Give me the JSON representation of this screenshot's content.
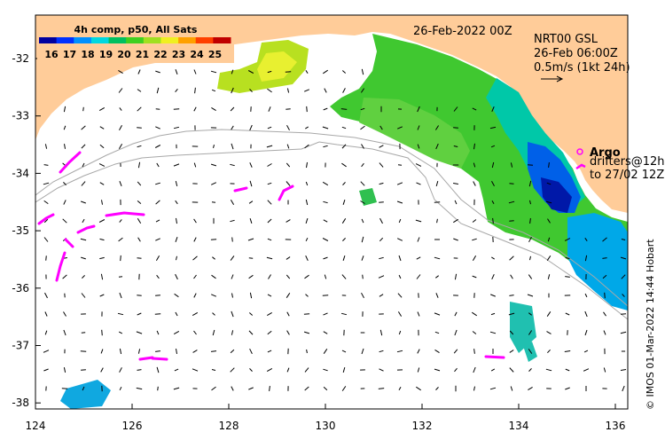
{
  "map": {
    "legend_title": "4h comp, p50, All Sats",
    "legend_ticks": [
      "16",
      "17",
      "18",
      "19",
      "20",
      "21",
      "22",
      "23",
      "24",
      "25"
    ],
    "legend_colors": [
      "#00009f",
      "#0030ff",
      "#0090ff",
      "#00d8e0",
      "#00c060",
      "#40d020",
      "#a0e020",
      "#f0f020",
      "#ffa000",
      "#ff4000",
      "#c00000"
    ],
    "date_label": "26-Feb-2022 00Z",
    "product_label": "NRT00 GSL",
    "product_time": "26-Feb 06:00Z",
    "scale_label": "0.5m/s (1kt 24h)",
    "argo_label": "Argo",
    "drifters_label": "drifters@12h",
    "drifters_range": "to 27/02 12Z",
    "credit": "© IMOS 01-Mar-2022 14:44 Hobart",
    "x_ticks": [
      "124",
      "126",
      "128",
      "130",
      "132",
      "134",
      "136"
    ],
    "y_ticks": [
      "-32",
      "-33",
      "-34",
      "-35",
      "-36",
      "-37",
      "-38"
    ],
    "land_color": "#ffcc99",
    "argo_color": "#ff00ff"
  }
}
